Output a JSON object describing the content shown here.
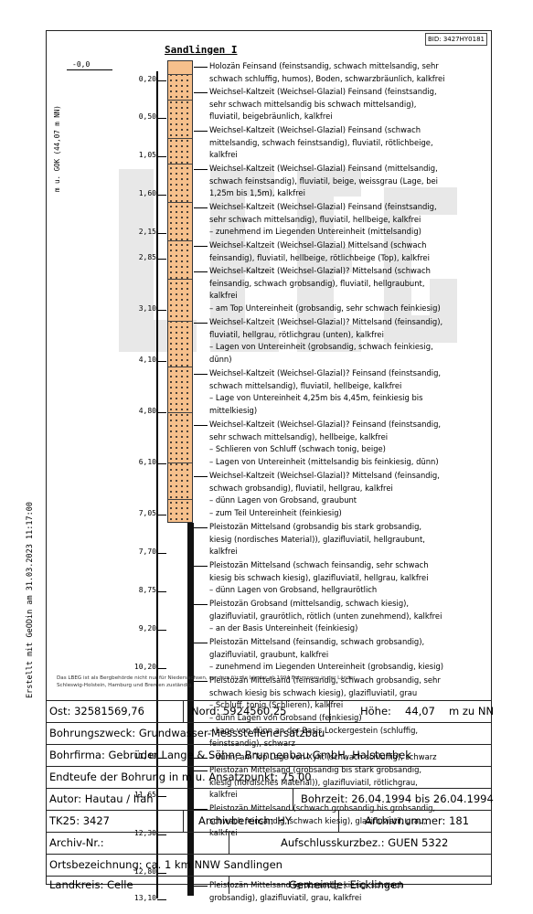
{
  "bid": "BID: 3427HY0181",
  "title": "Sandlingen I",
  "axis_label": "m u. GOK (44,07 m NN)",
  "top_depth": "-0,0",
  "timestamp": "Erstellt mit GeODin am 31.03.2023 11:17:00",
  "watermark": "LBEG",
  "depths": [
    "0,20",
    "0,50",
    "1,05",
    "1,60",
    "2,15",
    "2,85",
    "3,10",
    "4,10",
    "4,80",
    "6,10",
    "7,05",
    "7,70",
    "8,75",
    "9,20",
    "10,20",
    "11,40",
    "11,65",
    "12,30",
    "12,80",
    "13,10"
  ],
  "descriptions": [
    "Holozän  Feinsand (feinstsandig, schwach mittelsandig, sehr\nschwach schluffig, humos), Boden, schwarzbräunlich, kalkfrei",
    "Weichsel-Kaltzeit (Weichsel-Glazial)  Feinsand (feinstsandig,\nsehr schwach mittelsandig bis schwach mittelsandig),\nfluviatil, beigebräunlich, kalkfrei",
    "Weichsel-Kaltzeit (Weichsel-Glazial)  Feinsand (schwach\nmittelsandig, schwach feinstsandig), fluviatil, rötlichbeige,\nkalkfrei",
    "Weichsel-Kaltzeit (Weichsel-Glazial)  Feinsand (mittelsandig,\nschwach feinstsandig), fluviatil, beige, weissgrau (Lage, bei\n1,25m bis 1,5m), kalkfrei",
    "Weichsel-Kaltzeit (Weichsel-Glazial)  Feinsand (feinstsandig,\nsehr schwach mittelsandig), fluviatil, hellbeige, kalkfrei\n– zunehmend im Liegenden Untereinheit (mittelsandig)",
    "Weichsel-Kaltzeit (Weichsel-Glazial)  Mittelsand (schwach\nfeinsandig), fluviatil, hellbeige, rötlichbeige (Top), kalkfrei",
    "Weichsel-Kaltzeit (Weichsel-Glazial)?  Mittelsand (schwach\nfeinsandig, schwach grobsandig), fluviatil, hellgraubunt,\nkalkfrei\n– am Top Untereinheit (grobsandig, sehr schwach feinkiesig)",
    "Weichsel-Kaltzeit (Weichsel-Glazial)?  Mittelsand (feinsandig),\nfluviatil, hellgrau, rötlichgrau (unten), kalkfrei\n– Lagen von Untereinheit (grobsandig, schwach feinkiesig,\ndünn)",
    "Weichsel-Kaltzeit (Weichsel-Glazial)?  Feinsand (feinstsandig,\nschwach mittelsandig), fluviatil, hellbeige, kalkfrei\n– Lage von Untereinheit 4,25m bis 4,45m, feinkiesig bis\nmittelkiesig)",
    "Weichsel-Kaltzeit (Weichsel-Glazial)?  Feinsand (feinstsandig,\nsehr schwach mittelsandig), hellbeige, kalkfrei\n– Schlieren von Schluff (schwach tonig, beige)\n– Lagen von Untereinheit (mittelsandig bis feinkiesig, dünn)",
    "Weichsel-Kaltzeit (Weichsel-Glazial)?  Mittelsand (feinsandig,\nschwach grobsandig), fluviatil, hellgrau, kalkfrei\n– dünn Lagen von Grobsand, graubunt\n– zum Teil Untereinheit (feinkiesig)",
    "Pleistozän  Mittelsand (grobsandig bis stark grobsandig,\nkiesig (nordisches Material)), glazifluviatil, hellgraubunt,\nkalkfrei",
    "Pleistozän  Mittelsand (schwach feinsandig, sehr schwach\nkiesig bis schwach kiesig), glazifluviatil, hellgrau, kalkfrei\n– dünn Lagen von Grobsand, hellgraurötlich",
    "Pleistozän  Grobsand (mittelsandig, schwach kiesig),\nglazifluviatil, graurötlich, rötlich (unten zunehmend), kalkfrei\n– an der Basis Untereinheit (feinkiesig)",
    "Pleistozän  Mittelsand (feinsandig, schwach grobsandig),\nglazifluviatil, graubunt, kalkfrei\n– zunehmend im Liegenden Untereinheit (grobsandig, kiesig)",
    "Pleistozän  Mittelsand (feinsandig, schwach grobsandig, sehr\nschwach kiesig bis schwach kiesig), glazifluviatil, grau\n– Schluff, tonig (Schlieren), kalkfrei\n– dünn Lagen von Grobsand (feinkiesig)\n– Lage von dünn an der Basis Lockergestein (schluffig,\nfeinstsandig), schwarz",
    "– dünn, am Top Lage von Xylit (schwach schluffig), schwarz",
    "Pleistozän  Mittelsand (grobsandig bis stark grobsandig,\nkiesig (nordisches Material)), glazifluviatil, rötlichgrau,\nkalkfrei",
    "Pleistozän  Mittelsand (schwach grobsandig bis grobsandig,\nschwach feinsandig, schwach kiesig), glazifluviatil, grau,\nkalkfrei",
    "Pleistozän  Mittelsand (grobsandig, kiesig, schwach\ngrobsandig), glazifluviatil, grau, kalkfrei"
  ],
  "lbeg_note": "Das LBEG ist als Bergbehörde nicht nur für Niedersachsen, sondern für die Länder ab 1994 Bohrungen in der Länder\nSchleswig-Holstein, Hamburg und Bremen zuständig.",
  "info": {
    "ost": "Ost: 32581569,76",
    "nord": "Nord: 5924560,25",
    "hoehe_label": "Höhe:",
    "hoehe_value": "44,07",
    "hoehe_unit": "m zu NN",
    "bohrungszweck": "Bohrungszweck: Grundwasser-Messstellenersatzbau",
    "bohrfirma": "Bohrfirma: Gebrüder Lange & Söhne Brunnenbau GmbH, Halstenbek",
    "endteufe": "Endteufe der Bohrung in m u. Ansatzpunkt: 75,00",
    "autor": "Autor: Hautau / Ifah",
    "bohrzeit": "Bohrzeit: 26.04.1994 bis  26.04.1994",
    "tk25": "TK25: 3427",
    "archivbereich": "Archivbereich:  HY",
    "archivnummer": "Archivnummer:   181",
    "archiv_nr": "Archiv-Nr.:",
    "kurzbez": "Aufschlusskurzbez.:  GUEN 5322",
    "ortsbezeichnung": "Ortsbezeichnung:   ca. 1 km NNW Sandlingen",
    "landkreis": "Landkreis: Celle",
    "gemeinde": "Gemeinde: Eicklingen"
  }
}
